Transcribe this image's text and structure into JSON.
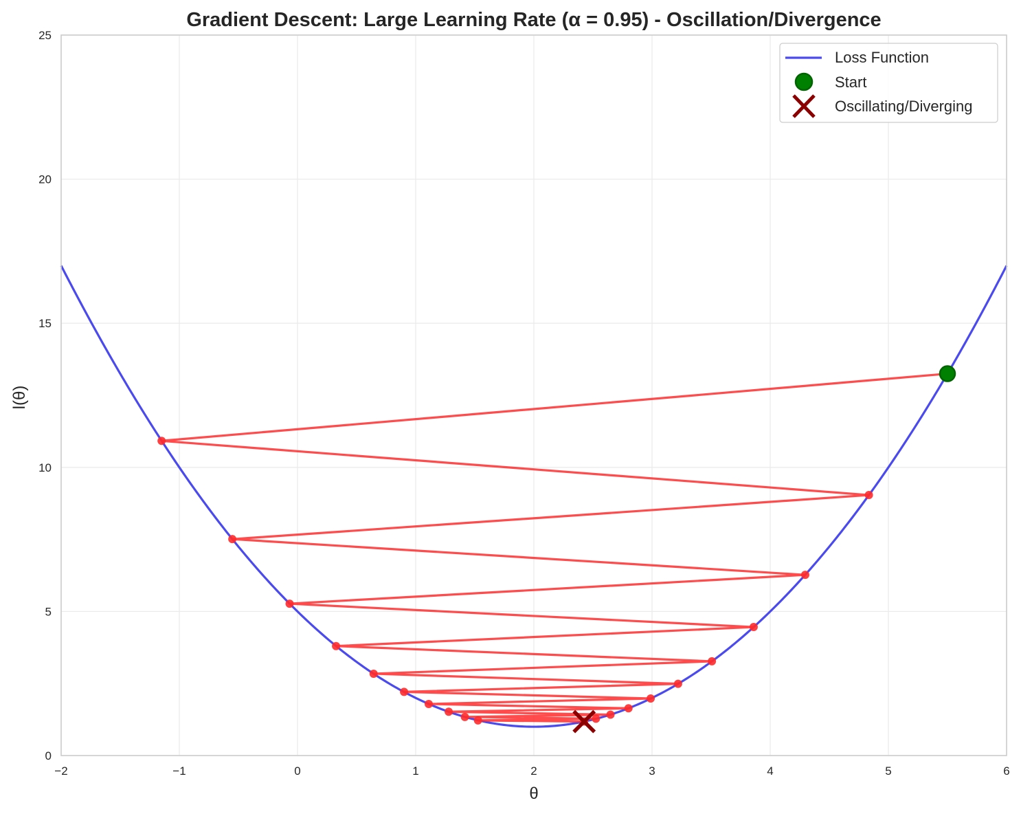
{
  "chart_data": {
    "type": "line",
    "title": "Gradient Descent: Large Learning Rate (α = 0.95) - Oscillation/Divergence",
    "xlabel": "θ",
    "ylabel": "l(θ)",
    "xlim": [
      -2,
      6
    ],
    "ylim": [
      0,
      25
    ],
    "xticks": [
      -2,
      -1,
      0,
      1,
      2,
      3,
      4,
      5,
      6
    ],
    "xtick_labels": [
      "−2",
      "−1",
      "0",
      "1",
      "2",
      "3",
      "4",
      "5",
      "6"
    ],
    "yticks": [
      0,
      5,
      10,
      15,
      20,
      25
    ],
    "ytick_labels": [
      "0",
      "5",
      "10",
      "15",
      "20",
      "25"
    ],
    "grid": true,
    "legend_position": "upper right",
    "series": [
      {
        "name": "Loss Function",
        "kind": "curve",
        "formula": "(θ - 2)^2 + 1",
        "color": "#4a4aee",
        "x": [
          -2,
          -1.5,
          -1,
          -0.5,
          0,
          0.5,
          1,
          1.5,
          2,
          2.5,
          3,
          3.5,
          4,
          4.5,
          5,
          5.5,
          6
        ],
        "y": [
          17,
          13.25,
          10,
          7.25,
          5,
          3.25,
          2,
          1.25,
          1,
          1.25,
          2,
          3.25,
          5,
          7.25,
          10,
          13.25,
          17
        ]
      },
      {
        "name": "Gradient descent path",
        "kind": "path",
        "color": "#ff2b2b",
        "x": [
          5.5,
          -1.15,
          4.835,
          -0.5515,
          4.2964,
          -0.0667,
          3.86,
          0.326,
          3.5066,
          0.644,
          3.2204,
          0.9017,
          2.9885,
          1.1103,
          2.8007,
          1.2794,
          2.6486,
          1.4163,
          2.5253,
          1.5272,
          2.4255
        ],
        "y": [
          13.25,
          10.92,
          9.04,
          7.51,
          6.27,
          5.27,
          4.46,
          3.8,
          3.27,
          2.84,
          2.49,
          2.21,
          1.98,
          1.79,
          1.64,
          1.52,
          1.42,
          1.34,
          1.28,
          1.22,
          1.18
        ]
      },
      {
        "name": "Start",
        "kind": "marker",
        "marker": "circle",
        "color": "#008000",
        "x": [
          5.5
        ],
        "y": [
          13.25
        ]
      },
      {
        "name": "Oscillating/Diverging",
        "kind": "marker",
        "marker": "x",
        "color": "#8b0000",
        "x": [
          2.4255
        ],
        "y": [
          1.18
        ]
      }
    ],
    "legend": [
      "Loss Function",
      "Start",
      "Oscillating/Diverging"
    ]
  },
  "legend": {
    "items": [
      {
        "label": "Loss Function"
      },
      {
        "label": "Start"
      },
      {
        "label": "Oscillating/Diverging"
      }
    ]
  }
}
